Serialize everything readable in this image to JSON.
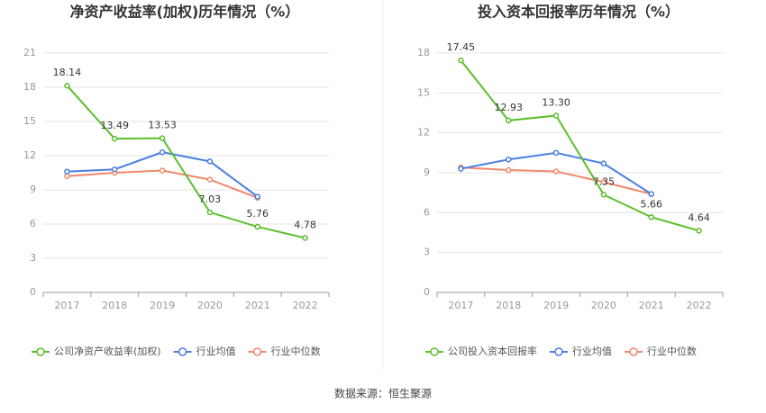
{
  "chart_data": [
    {
      "type": "line",
      "title": "净资产收益率(加权)历年情况（%）",
      "categories": [
        "2017",
        "2018",
        "2019",
        "2020",
        "2021",
        "2022"
      ],
      "ylim": [
        0,
        21
      ],
      "yticks": [
        0,
        3,
        6,
        9,
        12,
        15,
        18,
        21
      ],
      "grid": true,
      "series": [
        {
          "name": "公司净资产收益率(加权)",
          "color": "#5bbf2a",
          "values": [
            18.14,
            13.49,
            13.53,
            7.03,
            5.76,
            4.78
          ],
          "value_labels": [
            "18.14",
            "13.49",
            "13.53",
            "7.03",
            "5.76",
            "4.78"
          ]
        },
        {
          "name": "行业均值",
          "color": "#4a7fe0",
          "values": [
            10.6,
            10.8,
            12.3,
            11.5,
            8.4,
            null
          ]
        },
        {
          "name": "行业中位数",
          "color": "#f0886a",
          "values": [
            10.2,
            10.5,
            10.7,
            9.9,
            8.3,
            null
          ]
        }
      ]
    },
    {
      "type": "line",
      "title": "投入资本回报率历年情况（%）",
      "categories": [
        "2017",
        "2018",
        "2019",
        "2020",
        "2021",
        "2022"
      ],
      "ylim": [
        0,
        18
      ],
      "yticks": [
        0,
        3,
        6,
        9,
        12,
        15,
        18
      ],
      "grid": true,
      "series": [
        {
          "name": "公司投入资本回报率",
          "color": "#5bbf2a",
          "values": [
            17.45,
            12.93,
            13.3,
            7.35,
            5.66,
            4.64
          ],
          "value_labels": [
            "17.45",
            "12.93",
            "13.30",
            "7.35",
            "5.66",
            "4.64"
          ]
        },
        {
          "name": "行业均值",
          "color": "#4a7fe0",
          "values": [
            9.3,
            10.0,
            10.5,
            9.7,
            7.4,
            null
          ]
        },
        {
          "name": "行业中位数",
          "color": "#f0886a",
          "values": [
            9.4,
            9.2,
            9.1,
            8.3,
            7.4,
            null
          ]
        }
      ]
    }
  ],
  "source": "数据来源：恒生聚源"
}
